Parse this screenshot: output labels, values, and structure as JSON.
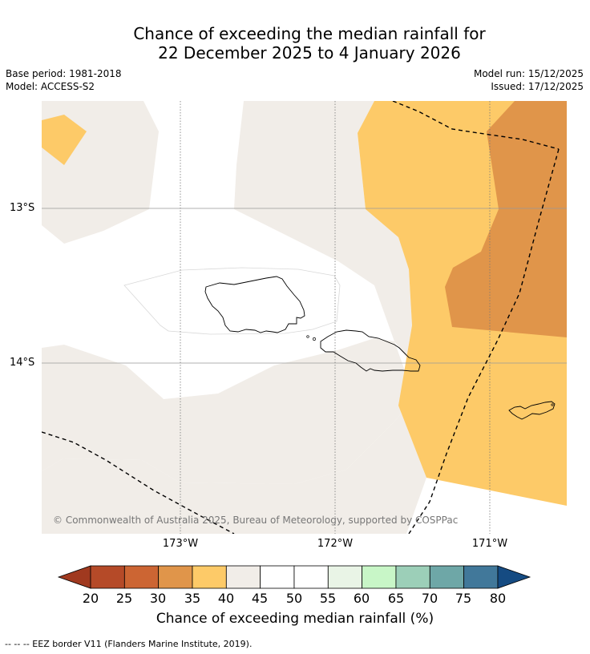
{
  "title": {
    "line1": "Chance of exceeding the median rainfall for",
    "line2": "22 December 2025 to 4 January 2026"
  },
  "meta": {
    "base_period": "Base period: 1981-2018",
    "model": "Model: ACCESS-S2",
    "model_run": "Model run: 15/12/2025",
    "issued": "Issued: 17/12/2025"
  },
  "axes": {
    "lat_labels": [
      "13°S",
      "14°S"
    ],
    "lon_labels": [
      "173°W",
      "172°W",
      "171°W"
    ]
  },
  "credit": "© Commonwealth of Australia 2025, Bureau of Meteorology, supported by COSPPac",
  "colorbar": {
    "ticks": [
      "20",
      "25",
      "30",
      "35",
      "40",
      "45",
      "50",
      "55",
      "60",
      "65",
      "70",
      "75",
      "80"
    ],
    "colors": [
      "#a0391f",
      "#b54a28",
      "#cc6533",
      "#e0954a",
      "#fdca68",
      "#f1ede8",
      "#ffffff",
      "#ffffff",
      "#e9f4e6",
      "#c8f6c7",
      "#9ccfb8",
      "#6ea7a7",
      "#41789a",
      "#154b82"
    ],
    "label": "Chance of exceeding median rainfall (%)"
  },
  "footer": "--  --  -- EEZ border V11 (Flanders Marine Institute, 2019).",
  "chart_data": {
    "type": "map",
    "variable": "Chance of exceeding median rainfall (%)",
    "regions": [
      {
        "name": "far west (north)",
        "category": "35-40"
      },
      {
        "name": "west / central",
        "category": "45-55"
      },
      {
        "name": "central band",
        "category": "40-45"
      },
      {
        "name": "east",
        "category": "35-40"
      },
      {
        "name": "north-east",
        "category": "30-35"
      }
    ]
  }
}
